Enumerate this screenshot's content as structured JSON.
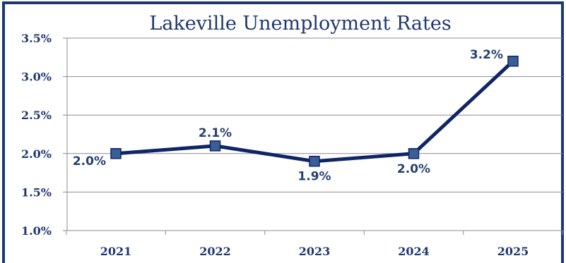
{
  "chart_data": {
    "type": "line",
    "title": "Lakeville Unemployment Rates",
    "xlabel": "",
    "ylabel": "",
    "categories": [
      "2021",
      "2022",
      "2023",
      "2024",
      "2025"
    ],
    "series": [
      {
        "values": [
          2.0,
          2.1,
          1.9,
          2.0,
          3.2
        ],
        "data_labels": [
          "2.0%",
          "2.1%",
          "1.9%",
          "2.0%",
          "3.2%"
        ],
        "label_positions": [
          "left",
          "above",
          "below",
          "below",
          "left"
        ]
      }
    ],
    "ylim": [
      1.0,
      3.5
    ],
    "yticks": [
      1.0,
      1.5,
      2.0,
      2.5,
      3.0,
      3.5
    ],
    "ytick_labels": [
      "1.0%",
      "1.5%",
      "2.0%",
      "2.5%",
      "3.0%",
      "3.5%"
    ],
    "grid": true,
    "legend": "none",
    "marker": "square",
    "colors": {
      "frame": "#1f3770",
      "line": "#0f2566",
      "marker": "#3a5e96",
      "text": "#1f3770",
      "data_label": "#27406f",
      "grid": "#8c8c8c"
    }
  }
}
